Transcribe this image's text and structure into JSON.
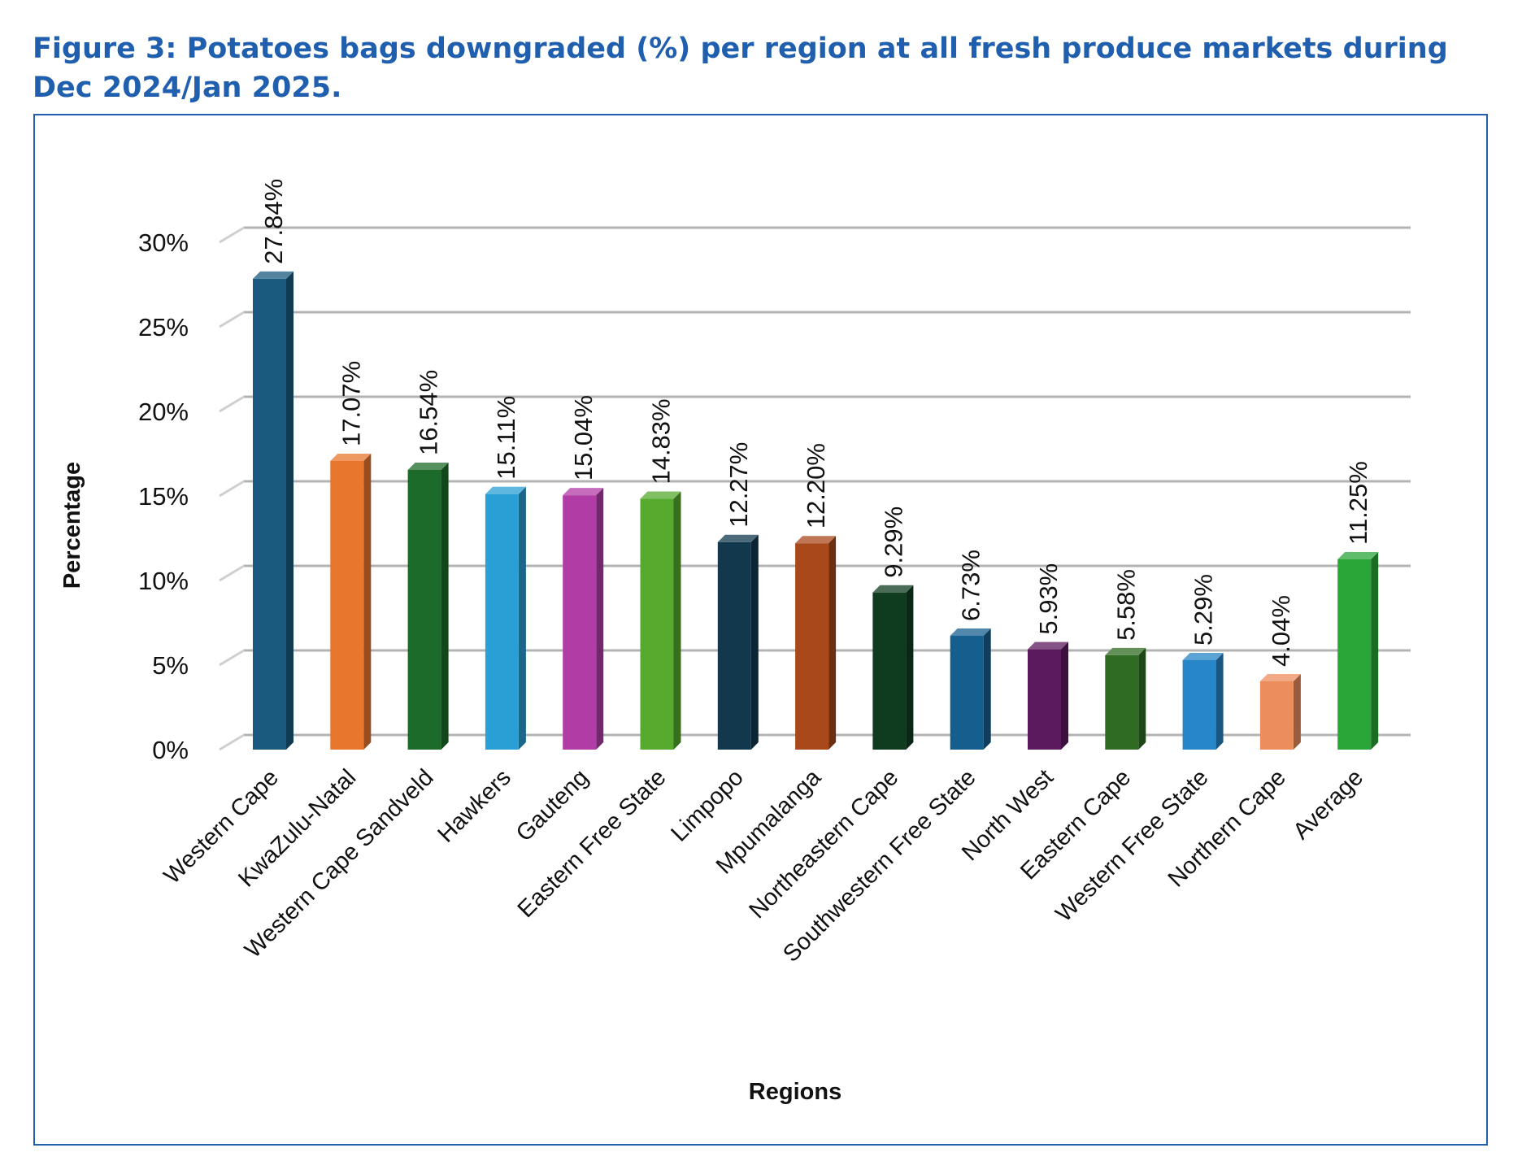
{
  "figure": {
    "title_line1": "Figure 3: Potatoes bags downgraded (%) per region at all fresh produce markets during",
    "title_line2": "Dec 2024/Jan 2025."
  },
  "chart_data": {
    "type": "bar",
    "title": "Figure 3: Potatoes bags downgraded (%) per region at all fresh produce markets during Dec 2024/Jan 2025.",
    "xlabel": "Regions",
    "ylabel": "Percentage",
    "ylim": [
      0,
      30
    ],
    "y_ticks": [
      0,
      5,
      10,
      15,
      20,
      25,
      30
    ],
    "y_tick_labels": [
      "0%",
      "5%",
      "10%",
      "15%",
      "20%",
      "25%",
      "30%"
    ],
    "grid": true,
    "legend": "none",
    "categories": [
      "Western Cape",
      "KwaZulu-Natal",
      "Western Cape Sandveld",
      "Hawkers",
      "Gauteng",
      "Eastern Free State",
      "Limpopo",
      "Mpumalanga",
      "Northeastern Cape",
      "Southwestern Free State",
      "North West",
      "Eastern Cape",
      "Western Free State",
      "Northern Cape",
      "Average"
    ],
    "values": [
      27.84,
      17.07,
      16.54,
      15.11,
      15.04,
      14.83,
      12.27,
      12.2,
      9.29,
      6.73,
      5.93,
      5.58,
      5.29,
      4.04,
      11.25
    ],
    "data_labels": [
      "27.84%",
      "17.07%",
      "16.54%",
      "15.11%",
      "15.04%",
      "14.83%",
      "12.27%",
      "12.20%",
      "9.29%",
      "6.73%",
      "5.93%",
      "5.58%",
      "5.29%",
      "4.04%",
      "11.25%"
    ],
    "colors": [
      "#1a5a7e",
      "#e8762d",
      "#1c6b2a",
      "#2a9fd6",
      "#b13ca6",
      "#56ab2f",
      "#12384e",
      "#a8481b",
      "#0f3b1f",
      "#155f8e",
      "#5c1a5e",
      "#2f6b22",
      "#2686c8",
      "#ec8e5c",
      "#2aa639"
    ]
  }
}
